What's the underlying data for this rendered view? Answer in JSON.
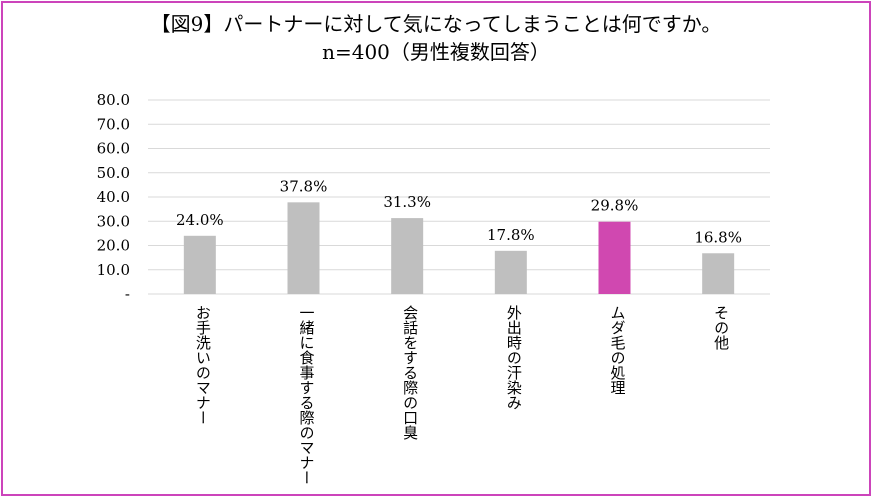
{
  "title": "【図9】パートナーに対して気になってしまうことは何ですか。",
  "subtitle": "n=400（男性複数回答）",
  "chart_data": {
    "type": "bar",
    "title": "【図9】パートナーに対して気になってしまうことは何ですか。",
    "subtitle": "n=400（男性複数回答）",
    "categories": [
      "お手洗いのマナー",
      "一緒に食事する際のマナー",
      "会話をする際の口臭",
      "外出時の汗染み",
      "ムダ毛の処理",
      "その他"
    ],
    "values": [
      24.0,
      37.8,
      31.3,
      17.8,
      29.8,
      16.8
    ],
    "data_labels": [
      "24.0%",
      "37.8%",
      "31.3%",
      "17.8%",
      "29.8%",
      "16.8%"
    ],
    "highlight_index": 4,
    "colors": {
      "bar": "#bfbfbf",
      "highlight": "#d048b0",
      "grid": "#d9d9d9",
      "frame": "#cc44bb"
    },
    "yticks": [
      "-",
      "10.0",
      "20.0",
      "30.0",
      "40.0",
      "50.0",
      "60.0",
      "70.0",
      "80.0"
    ],
    "ylim": [
      0,
      80
    ],
    "xlabel": "",
    "ylabel": "",
    "grid": true
  }
}
